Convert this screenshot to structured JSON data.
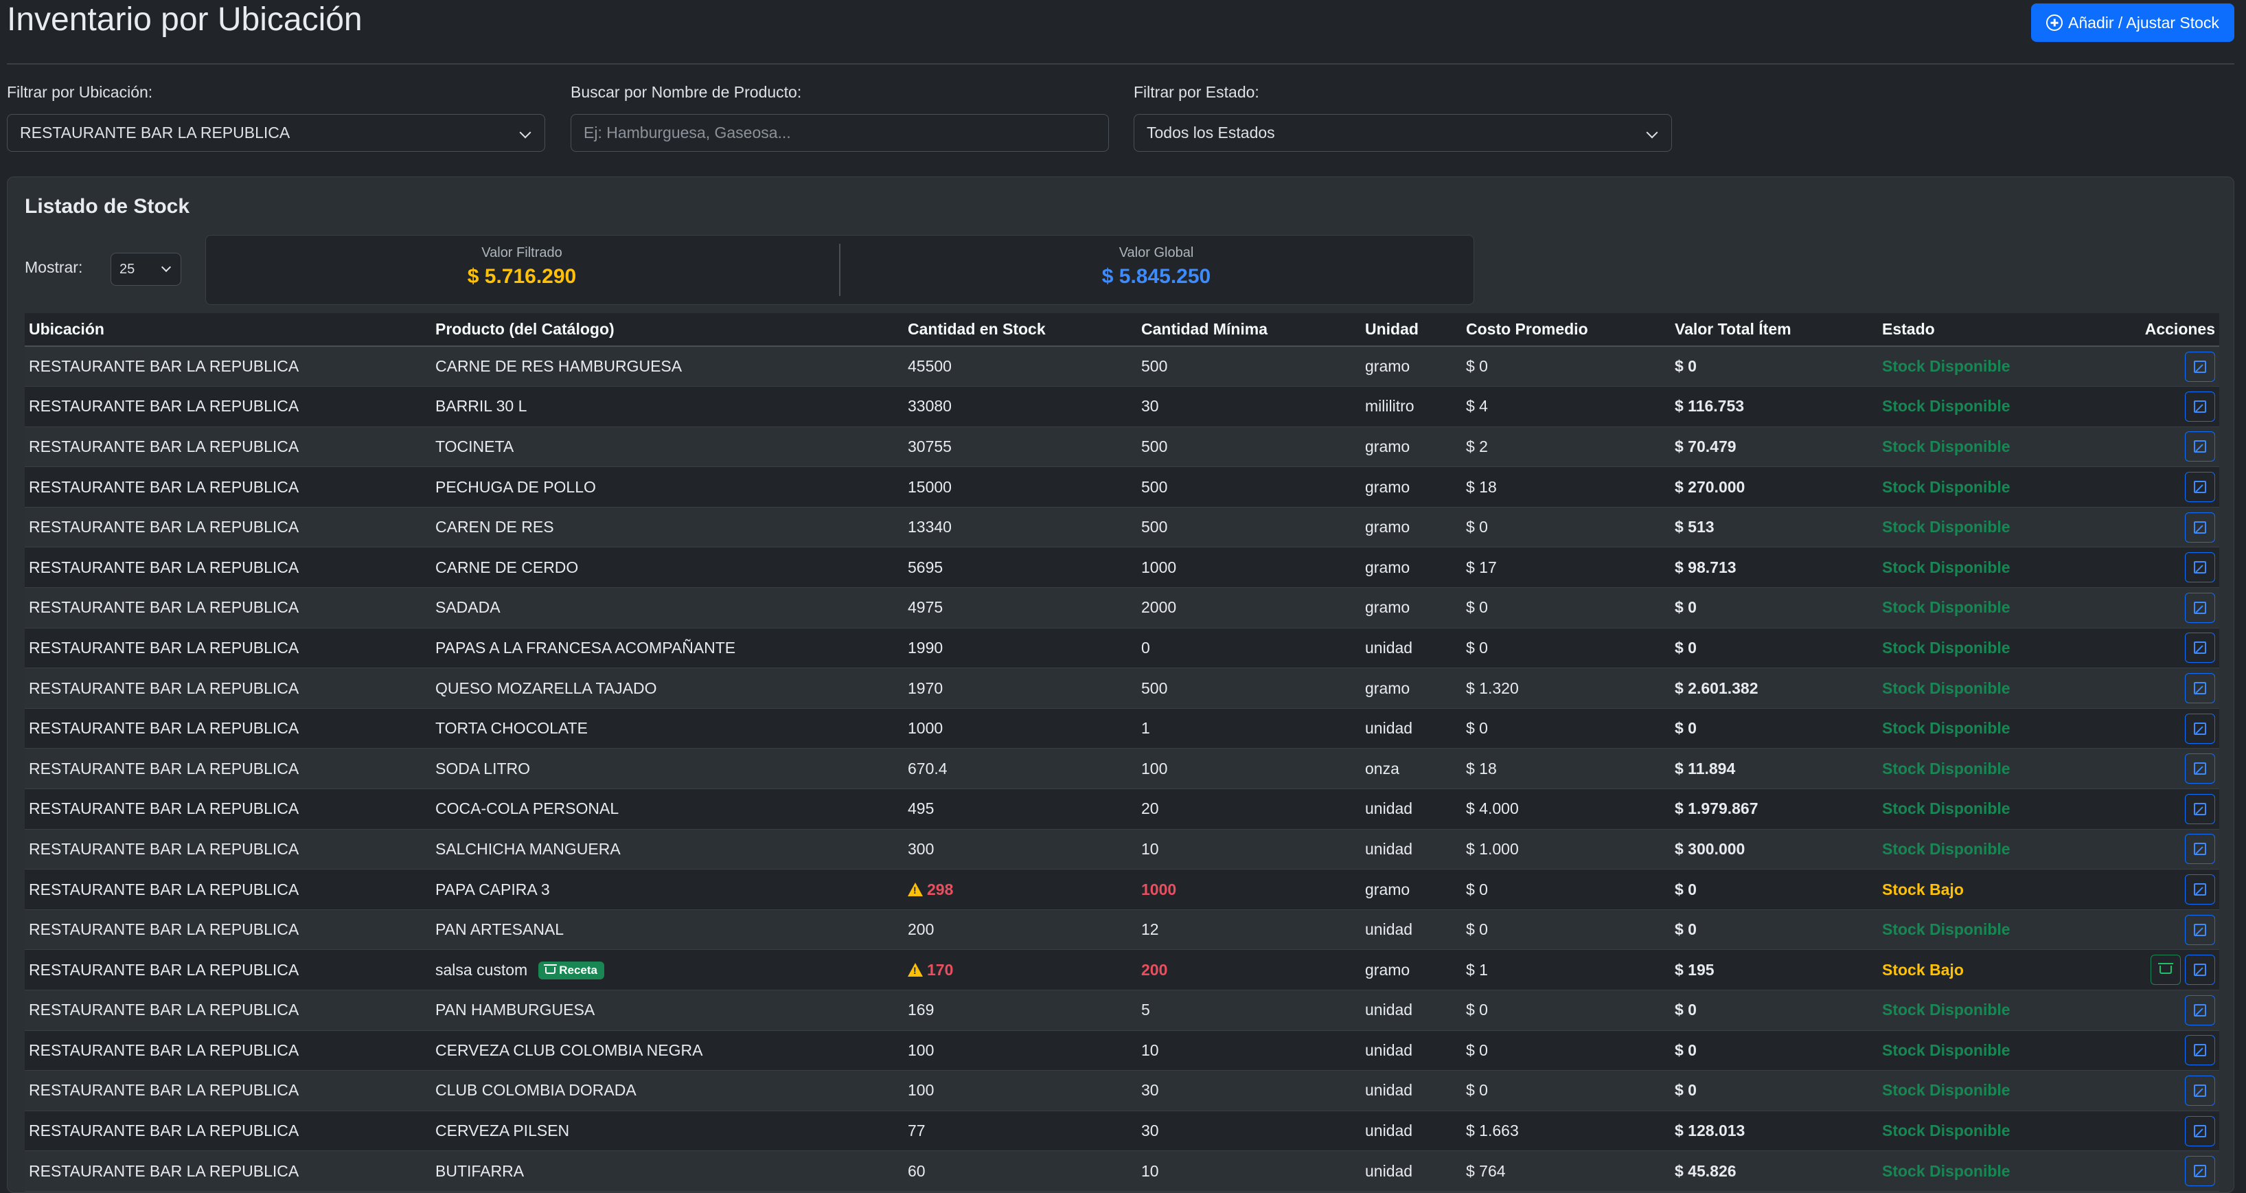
{
  "header": {
    "title": "Inventario por Ubicación",
    "add_button": "Añadir / Ajustar Stock"
  },
  "filters": {
    "location_label": "Filtrar por Ubicación:",
    "location_value": "RESTAURANTE BAR LA REPUBLICA",
    "search_label": "Buscar por Nombre de Producto:",
    "search_placeholder": "Ej: Hamburguesa, Gaseosa...",
    "status_label": "Filtrar por Estado:",
    "status_value": "Todos los Estados"
  },
  "card": {
    "title": "Listado de Stock",
    "show_label": "Mostrar:",
    "show_value": "25",
    "filtered_label": "Valor Filtrado",
    "filtered_value": "$ 5.716.290",
    "global_label": "Valor Global",
    "global_value": "$ 5.845.250"
  },
  "colors": {
    "filtered_value": "#ffc107",
    "global_value": "#3d8bfd",
    "status_ok": "#198754",
    "status_low": "#ffc107",
    "low_qty": "#ea4f5f",
    "accent": "#0d6efd"
  },
  "table": {
    "headers": [
      "Ubicación",
      "Producto (del Catálogo)",
      "Cantidad en Stock",
      "Cantidad Mínima",
      "Unidad",
      "Costo Promedio",
      "Valor Total Ítem",
      "Estado",
      "Acciones"
    ],
    "rows": [
      {
        "ubicacion": "RESTAURANTE BAR LA REPUBLICA",
        "producto": "CARNE DE RES HAMBURGUESA",
        "cantidad": "45500",
        "minima": "500",
        "unidad": "gramo",
        "costo": "$ 0",
        "valor": "$ 0",
        "estado": "Stock Disponible",
        "low": false,
        "receta": ""
      },
      {
        "ubicacion": "RESTAURANTE BAR LA REPUBLICA",
        "producto": "BARRIL 30 L",
        "cantidad": "33080",
        "minima": "30",
        "unidad": "mililitro",
        "costo": "$ 4",
        "valor": "$ 116.753",
        "estado": "Stock Disponible",
        "low": false,
        "receta": ""
      },
      {
        "ubicacion": "RESTAURANTE BAR LA REPUBLICA",
        "producto": "TOCINETA",
        "cantidad": "30755",
        "minima": "500",
        "unidad": "gramo",
        "costo": "$ 2",
        "valor": "$ 70.479",
        "estado": "Stock Disponible",
        "low": false,
        "receta": ""
      },
      {
        "ubicacion": "RESTAURANTE BAR LA REPUBLICA",
        "producto": "PECHUGA DE POLLO",
        "cantidad": "15000",
        "minima": "500",
        "unidad": "gramo",
        "costo": "$ 18",
        "valor": "$ 270.000",
        "estado": "Stock Disponible",
        "low": false,
        "receta": ""
      },
      {
        "ubicacion": "RESTAURANTE BAR LA REPUBLICA",
        "producto": "CAREN DE RES",
        "cantidad": "13340",
        "minima": "500",
        "unidad": "gramo",
        "costo": "$ 0",
        "valor": "$ 513",
        "estado": "Stock Disponible",
        "low": false,
        "receta": ""
      },
      {
        "ubicacion": "RESTAURANTE BAR LA REPUBLICA",
        "producto": "CARNE DE CERDO",
        "cantidad": "5695",
        "minima": "1000",
        "unidad": "gramo",
        "costo": "$ 17",
        "valor": "$ 98.713",
        "estado": "Stock Disponible",
        "low": false,
        "receta": ""
      },
      {
        "ubicacion": "RESTAURANTE BAR LA REPUBLICA",
        "producto": "SADADA",
        "cantidad": "4975",
        "minima": "2000",
        "unidad": "gramo",
        "costo": "$ 0",
        "valor": "$ 0",
        "estado": "Stock Disponible",
        "low": false,
        "receta": ""
      },
      {
        "ubicacion": "RESTAURANTE BAR LA REPUBLICA",
        "producto": "PAPAS A LA FRANCESA ACOMPAÑANTE",
        "cantidad": "1990",
        "minima": "0",
        "unidad": "unidad",
        "costo": "$ 0",
        "valor": "$ 0",
        "estado": "Stock Disponible",
        "low": false,
        "receta": ""
      },
      {
        "ubicacion": "RESTAURANTE BAR LA REPUBLICA",
        "producto": "QUESO MOZARELLA TAJADO",
        "cantidad": "1970",
        "minima": "500",
        "unidad": "gramo",
        "costo": "$ 1.320",
        "valor": "$ 2.601.382",
        "estado": "Stock Disponible",
        "low": false,
        "receta": ""
      },
      {
        "ubicacion": "RESTAURANTE BAR LA REPUBLICA",
        "producto": "TORTA CHOCOLATE",
        "cantidad": "1000",
        "minima": "1",
        "unidad": "unidad",
        "costo": "$ 0",
        "valor": "$ 0",
        "estado": "Stock Disponible",
        "low": false,
        "receta": ""
      },
      {
        "ubicacion": "RESTAURANTE BAR LA REPUBLICA",
        "producto": "SODA LITRO",
        "cantidad": "670.4",
        "minima": "100",
        "unidad": "onza",
        "costo": "$ 18",
        "valor": "$ 11.894",
        "estado": "Stock Disponible",
        "low": false,
        "receta": ""
      },
      {
        "ubicacion": "RESTAURANTE BAR LA REPUBLICA",
        "producto": "COCA-COLA PERSONAL",
        "cantidad": "495",
        "minima": "20",
        "unidad": "unidad",
        "costo": "$ 4.000",
        "valor": "$ 1.979.867",
        "estado": "Stock Disponible",
        "low": false,
        "receta": ""
      },
      {
        "ubicacion": "RESTAURANTE BAR LA REPUBLICA",
        "producto": "SALCHICHA MANGUERA",
        "cantidad": "300",
        "minima": "10",
        "unidad": "unidad",
        "costo": "$ 1.000",
        "valor": "$ 300.000",
        "estado": "Stock Disponible",
        "low": false,
        "receta": ""
      },
      {
        "ubicacion": "RESTAURANTE BAR LA REPUBLICA",
        "producto": "PAPA CAPIRA 3",
        "cantidad": "298",
        "minima": "1000",
        "unidad": "gramo",
        "costo": "$ 0",
        "valor": "$ 0",
        "estado": "Stock Bajo",
        "low": true,
        "receta": ""
      },
      {
        "ubicacion": "RESTAURANTE BAR LA REPUBLICA",
        "producto": "PAN ARTESANAL",
        "cantidad": "200",
        "minima": "12",
        "unidad": "unidad",
        "costo": "$ 0",
        "valor": "$ 0",
        "estado": "Stock Disponible",
        "low": false,
        "receta": ""
      },
      {
        "ubicacion": "RESTAURANTE BAR LA REPUBLICA",
        "producto": "salsa custom",
        "cantidad": "170",
        "minima": "200",
        "unidad": "gramo",
        "costo": "$ 1",
        "valor": "$ 195",
        "estado": "Stock Bajo",
        "low": true,
        "receta": "Receta"
      },
      {
        "ubicacion": "RESTAURANTE BAR LA REPUBLICA",
        "producto": "PAN HAMBURGUESA",
        "cantidad": "169",
        "minima": "5",
        "unidad": "unidad",
        "costo": "$ 0",
        "valor": "$ 0",
        "estado": "Stock Disponible",
        "low": false,
        "receta": ""
      },
      {
        "ubicacion": "RESTAURANTE BAR LA REPUBLICA",
        "producto": "CERVEZA CLUB COLOMBIA NEGRA",
        "cantidad": "100",
        "minima": "10",
        "unidad": "unidad",
        "costo": "$ 0",
        "valor": "$ 0",
        "estado": "Stock Disponible",
        "low": false,
        "receta": ""
      },
      {
        "ubicacion": "RESTAURANTE BAR LA REPUBLICA",
        "producto": "CLUB COLOMBIA DORADA",
        "cantidad": "100",
        "minima": "30",
        "unidad": "unidad",
        "costo": "$ 0",
        "valor": "$ 0",
        "estado": "Stock Disponible",
        "low": false,
        "receta": ""
      },
      {
        "ubicacion": "RESTAURANTE BAR LA REPUBLICA",
        "producto": "CERVEZA PILSEN",
        "cantidad": "77",
        "minima": "30",
        "unidad": "unidad",
        "costo": "$ 1.663",
        "valor": "$ 128.013",
        "estado": "Stock Disponible",
        "low": false,
        "receta": ""
      },
      {
        "ubicacion": "RESTAURANTE BAR LA REPUBLICA",
        "producto": "BUTIFARRA",
        "cantidad": "60",
        "minima": "10",
        "unidad": "unidad",
        "costo": "$ 764",
        "valor": "$ 45.826",
        "estado": "Stock Disponible",
        "low": false,
        "receta": ""
      }
    ]
  }
}
